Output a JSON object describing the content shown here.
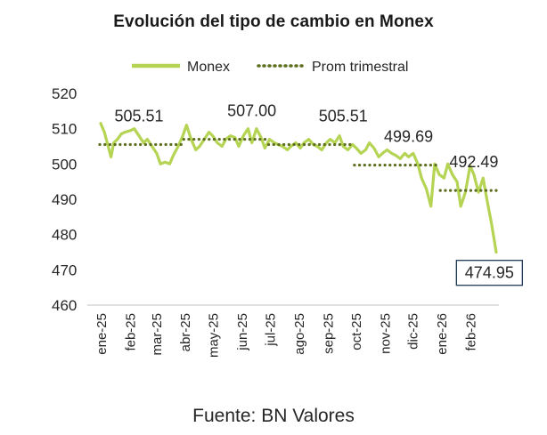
{
  "chart_data": {
    "type": "line",
    "title": "Evolución del tipo de cambio en Monex",
    "xlabel": "",
    "ylabel": "",
    "ylim": [
      460,
      520
    ],
    "y_ticks": [
      "520",
      "510",
      "500",
      "490",
      "480",
      "470",
      "460"
    ],
    "x_ticks": [
      "ene-25",
      "feb-25",
      "mar-25",
      "abr-25",
      "may-25",
      "jun-25",
      "jul-25",
      "ago-25",
      "sep-25",
      "oct-25",
      "nov-25",
      "dic-25",
      "ene-26",
      "feb-26"
    ],
    "grid": false,
    "legend": "top-center",
    "series": [
      {
        "name": "Monex",
        "style": "solid",
        "color": "#b5d453",
        "x": [
          "2025-01-02",
          "2025-01-06",
          "2025-01-10",
          "2025-01-13",
          "2025-01-16",
          "2025-01-20",
          "2025-01-24",
          "2025-01-28",
          "2025-02-03",
          "2025-02-07",
          "2025-02-12",
          "2025-02-17",
          "2025-02-21",
          "2025-02-26",
          "2025-03-03",
          "2025-03-07",
          "2025-03-12",
          "2025-03-17",
          "2025-03-21",
          "2025-03-26",
          "2025-03-31",
          "2025-04-04",
          "2025-04-09",
          "2025-04-14",
          "2025-04-18",
          "2025-04-23",
          "2025-04-28",
          "2025-05-02",
          "2025-05-07",
          "2025-05-12",
          "2025-05-16",
          "2025-05-21",
          "2025-05-26",
          "2025-05-30",
          "2025-06-04",
          "2025-06-09",
          "2025-06-13",
          "2025-06-18",
          "2025-06-23",
          "2025-06-27",
          "2025-07-02",
          "2025-07-07",
          "2025-07-11",
          "2025-07-16",
          "2025-07-21",
          "2025-07-25",
          "2025-07-30",
          "2025-08-04",
          "2025-08-08",
          "2025-08-13",
          "2025-08-18",
          "2025-08-22",
          "2025-08-27",
          "2025-09-01",
          "2025-09-05",
          "2025-09-10",
          "2025-09-15",
          "2025-09-19",
          "2025-09-24",
          "2025-09-29",
          "2025-10-03",
          "2025-10-08",
          "2025-10-13",
          "2025-10-17",
          "2025-10-22",
          "2025-10-27",
          "2025-10-31",
          "2025-11-05",
          "2025-11-10",
          "2025-11-14",
          "2025-11-19",
          "2025-11-24",
          "2025-11-28",
          "2025-12-03",
          "2025-12-08",
          "2025-12-12",
          "2025-12-17",
          "2025-12-22",
          "2025-12-26",
          "2025-12-31",
          "2026-01-05",
          "2026-01-09",
          "2026-01-14",
          "2026-01-19",
          "2026-01-23",
          "2026-01-28",
          "2026-02-02",
          "2026-02-06",
          "2026-02-11",
          "2026-02-16",
          "2026-02-20",
          "2026-02-25",
          "2026-03-02"
        ],
        "values": [
          511.5,
          509,
          505,
          502,
          506,
          507,
          508.5,
          509,
          509.5,
          510,
          508,
          506,
          507,
          505,
          503,
          500,
          500.5,
          500,
          502.5,
          505,
          508,
          511,
          507,
          504,
          505,
          507,
          509,
          508,
          506,
          505,
          507,
          508,
          507.5,
          505,
          508,
          510,
          506,
          510,
          507.5,
          504.5,
          507,
          506,
          505.5,
          505,
          504,
          505,
          506,
          504.5,
          506,
          507,
          505.5,
          505,
          504,
          506,
          507,
          506,
          508,
          505,
          504,
          505.5,
          504.5,
          503,
          504,
          506,
          504.5,
          502,
          503,
          504,
          503,
          502.5,
          501.5,
          503,
          502,
          503,
          500,
          496,
          493,
          488,
          500,
          497,
          496,
          500,
          497,
          495,
          488,
          492,
          499.5,
          497,
          492,
          496,
          490,
          483,
          475
        ]
      },
      {
        "name": "Prom trimestral",
        "style": "dotted",
        "color": "#5e6f20",
        "x": [
          "2025-01-01",
          "2025-03-31",
          "2025-04-01",
          "2025-06-30",
          "2025-07-01",
          "2025-09-30",
          "2025-10-01",
          "2025-12-31",
          "2026-01-01",
          "2026-03-02"
        ],
        "values": [
          505.51,
          505.51,
          507.0,
          507.0,
          505.51,
          505.51,
          499.69,
          499.69,
          492.49,
          492.49
        ]
      }
    ],
    "annotations": [
      {
        "text": "505.51",
        "x": "2025-02-12",
        "y": 505.51
      },
      {
        "text": "507.00",
        "x": "2025-06-13",
        "y": 507.0
      },
      {
        "text": "505.51",
        "x": "2025-09-19",
        "y": 505.51
      },
      {
        "text": "499.69",
        "x": "2025-11-28",
        "y": 499.69
      },
      {
        "text": "492.49",
        "x": "2026-02-06",
        "y": 492.49
      },
      {
        "text": "474.95",
        "x": "2026-02-16",
        "y": 474.95,
        "boxed": true
      }
    ],
    "source": "Fuente: BN Valores"
  }
}
